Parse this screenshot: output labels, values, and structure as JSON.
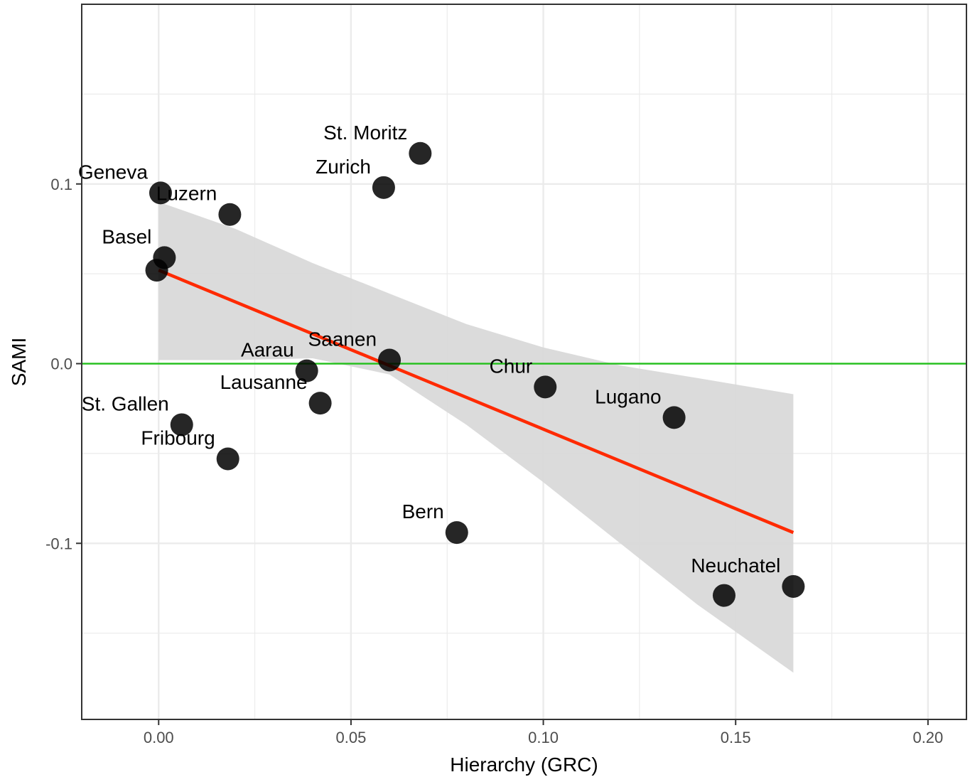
{
  "chart_data": {
    "type": "scatter",
    "xlabel": "Hierarchy (GRC)",
    "ylabel": "SAMI",
    "xlim": [
      -0.02,
      0.21
    ],
    "ylim": [
      -0.198,
      0.2
    ],
    "x_ticks": [
      {
        "value": 0.0,
        "label": "0.00"
      },
      {
        "value": 0.05,
        "label": "0.05"
      },
      {
        "value": 0.1,
        "label": "0.10"
      },
      {
        "value": 0.15,
        "label": "0.15"
      },
      {
        "value": 0.2,
        "label": "0.20"
      }
    ],
    "y_ticks": [
      {
        "value": 0.1,
        "label": "0.1"
      },
      {
        "value": 0.0,
        "label": "0.0"
      },
      {
        "value": -0.1,
        "label": "-0.1"
      }
    ],
    "grid": true,
    "legend": "none",
    "points": [
      {
        "x": 0.0005,
        "y": 0.095,
        "label": "Geneva"
      },
      {
        "x": 0.0185,
        "y": 0.083,
        "label": "Luzern"
      },
      {
        "x": 0.0015,
        "y": 0.059,
        "label": "Basel"
      },
      {
        "x": -0.0005,
        "y": 0.052,
        "label": ""
      },
      {
        "x": 0.068,
        "y": 0.117,
        "label": "St. Moritz"
      },
      {
        "x": 0.0585,
        "y": 0.098,
        "label": "Zurich"
      },
      {
        "x": 0.06,
        "y": 0.002,
        "label": "Saanen"
      },
      {
        "x": 0.0385,
        "y": -0.004,
        "label": "Aarau"
      },
      {
        "x": 0.042,
        "y": -0.022,
        "label": "Lausanne"
      },
      {
        "x": 0.1005,
        "y": -0.013,
        "label": "Chur"
      },
      {
        "x": 0.134,
        "y": -0.03,
        "label": "Lugano"
      },
      {
        "x": 0.006,
        "y": -0.034,
        "label": "St. Gallen"
      },
      {
        "x": 0.018,
        "y": -0.053,
        "label": "Fribourg"
      },
      {
        "x": 0.0775,
        "y": -0.094,
        "label": "Bern"
      },
      {
        "x": 0.147,
        "y": -0.129,
        "label": ""
      },
      {
        "x": 0.165,
        "y": -0.124,
        "label": "Neuchatel"
      }
    ],
    "regression": {
      "color": "#ff2a00",
      "start": [
        0.0,
        0.052
      ],
      "end": [
        0.165,
        -0.094
      ]
    },
    "confidence_band": {
      "color": "#d9d9d9",
      "x": [
        0.0,
        0.02,
        0.04,
        0.06,
        0.08,
        0.1,
        0.12,
        0.14,
        0.165
      ],
      "upper": [
        0.09,
        0.075,
        0.056,
        0.039,
        0.022,
        0.009,
        -0.001,
        -0.008,
        -0.017
      ],
      "lower": [
        0.002,
        0.002,
        0.003,
        -0.006,
        -0.034,
        -0.066,
        -0.1,
        -0.134,
        -0.172
      ]
    },
    "reference_line": {
      "y": 0.0,
      "color": "#22c01a"
    },
    "colors": {
      "point": "#000000",
      "grid": "#ebebeb",
      "border": "#333333"
    }
  }
}
